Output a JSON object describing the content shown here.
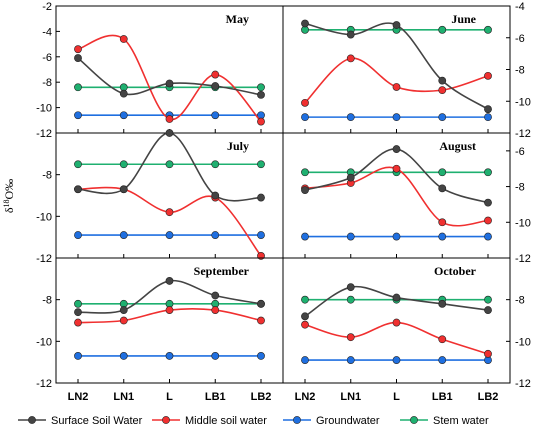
{
  "figure": {
    "ylabel": "δ18O‰",
    "ylabel_base": "δ",
    "ylabel_sup": "18",
    "ylabel_rest": "O‰"
  },
  "legend": [
    {
      "name": "Surface Soil Water",
      "color": "#444444"
    },
    {
      "name": "Middle soil water",
      "color": "#f03030"
    },
    {
      "name": "Groundwater",
      "color": "#1f6fe0"
    },
    {
      "name": "Stem water",
      "color": "#1fb070"
    }
  ],
  "chart_data": [
    {
      "type": "line",
      "title": "May",
      "categories": [
        "LN2",
        "LN1",
        "L",
        "LB1",
        "LB2"
      ],
      "ylim": [
        -12,
        -2
      ],
      "yticks": [
        -2,
        -4,
        -6,
        -8,
        -10,
        -12
      ],
      "series": [
        {
          "name": "Surface Soil Water",
          "values": [
            -6.1,
            -8.9,
            -8.1,
            -8.3,
            -9.0
          ]
        },
        {
          "name": "Middle soil water",
          "values": [
            -5.4,
            -4.6,
            -10.9,
            -7.4,
            -11.1
          ]
        },
        {
          "name": "Groundwater",
          "values": [
            -10.6,
            -10.6,
            -10.6,
            -10.6,
            -10.6
          ]
        },
        {
          "name": "Stem water",
          "values": [
            -8.4,
            -8.4,
            -8.4,
            -8.4,
            -8.4
          ]
        }
      ]
    },
    {
      "type": "line",
      "title": "June",
      "categories": [
        "LN2",
        "LN1",
        "L",
        "LB1",
        "LB2"
      ],
      "ylim": [
        -12,
        -4
      ],
      "yticks": [
        -4,
        -6,
        -8,
        -10,
        -12
      ],
      "series": [
        {
          "name": "Surface Soil Water",
          "values": [
            -5.1,
            -5.8,
            -5.2,
            -8.7,
            -10.5
          ]
        },
        {
          "name": "Middle soil water",
          "values": [
            -10.1,
            -7.3,
            -9.1,
            -9.3,
            -8.4
          ]
        },
        {
          "name": "Groundwater",
          "values": [
            -11.0,
            -11.0,
            -11.0,
            -11.0,
            -11.0
          ]
        },
        {
          "name": "Stem water",
          "values": [
            -5.5,
            -5.5,
            -5.5,
            -5.5,
            -5.5
          ]
        }
      ]
    },
    {
      "type": "line",
      "title": "July",
      "categories": [
        "LN2",
        "LN1",
        "L",
        "LB1",
        "LB2"
      ],
      "ylim": [
        -12,
        -6
      ],
      "yticks": [
        -8,
        -10,
        -12
      ],
      "series": [
        {
          "name": "Surface Soil Water",
          "values": [
            -8.7,
            -8.7,
            -6.0,
            -9.0,
            -9.1
          ]
        },
        {
          "name": "Middle soil water",
          "values": [
            -8.7,
            -8.7,
            -9.8,
            -9.1,
            -11.9
          ]
        },
        {
          "name": "Groundwater",
          "values": [
            -10.9,
            -10.9,
            -10.9,
            -10.9,
            -10.9
          ]
        },
        {
          "name": "Stem water",
          "values": [
            -7.5,
            -7.5,
            -7.5,
            -7.5,
            -7.5
          ]
        }
      ]
    },
    {
      "type": "line",
      "title": "August",
      "categories": [
        "LN2",
        "LN1",
        "L",
        "LB1",
        "LB2"
      ],
      "ylim": [
        -12,
        -5
      ],
      "yticks": [
        -6,
        -8,
        -10,
        -12
      ],
      "series": [
        {
          "name": "Surface Soil Water",
          "values": [
            -8.2,
            -7.5,
            -5.9,
            -8.1,
            -8.9
          ]
        },
        {
          "name": "Middle soil water",
          "values": [
            -8.1,
            -7.8,
            -7.0,
            -10.0,
            -9.9
          ]
        },
        {
          "name": "Groundwater",
          "values": [
            -10.8,
            -10.8,
            -10.8,
            -10.8,
            -10.8
          ]
        },
        {
          "name": "Stem water",
          "values": [
            -7.2,
            -7.2,
            -7.2,
            -7.2,
            -7.2
          ]
        }
      ]
    },
    {
      "type": "line",
      "title": "September",
      "categories": [
        "LN2",
        "LN1",
        "L",
        "LB1",
        "LB2"
      ],
      "ylim": [
        -12,
        -6
      ],
      "yticks": [
        -8,
        -10,
        -12
      ],
      "series": [
        {
          "name": "Surface Soil Water",
          "values": [
            -8.6,
            -8.5,
            -7.1,
            -7.8,
            -8.2
          ]
        },
        {
          "name": "Middle soil water",
          "values": [
            -9.1,
            -9.0,
            -8.5,
            -8.5,
            -9.0
          ]
        },
        {
          "name": "Groundwater",
          "values": [
            -10.7,
            -10.7,
            -10.7,
            -10.7,
            -10.7
          ]
        },
        {
          "name": "Stem water",
          "values": [
            -8.2,
            -8.2,
            -8.2,
            -8.2,
            -8.2
          ]
        }
      ]
    },
    {
      "type": "line",
      "title": "October",
      "categories": [
        "LN2",
        "LN1",
        "L",
        "LB1",
        "LB2"
      ],
      "ylim": [
        -12,
        -6
      ],
      "yticks": [
        -8,
        -10,
        -12
      ],
      "series": [
        {
          "name": "Surface Soil Water",
          "values": [
            -8.8,
            -7.4,
            -7.9,
            -8.2,
            -8.5
          ]
        },
        {
          "name": "Middle soil water",
          "values": [
            -9.2,
            -9.8,
            -9.1,
            -9.9,
            -10.6
          ]
        },
        {
          "name": "Groundwater",
          "values": [
            -10.9,
            -10.9,
            -10.9,
            -10.9,
            -10.9
          ]
        },
        {
          "name": "Stem water",
          "values": [
            -8.0,
            -8.0,
            -8.0,
            -8.0,
            -8.0
          ]
        }
      ]
    }
  ]
}
